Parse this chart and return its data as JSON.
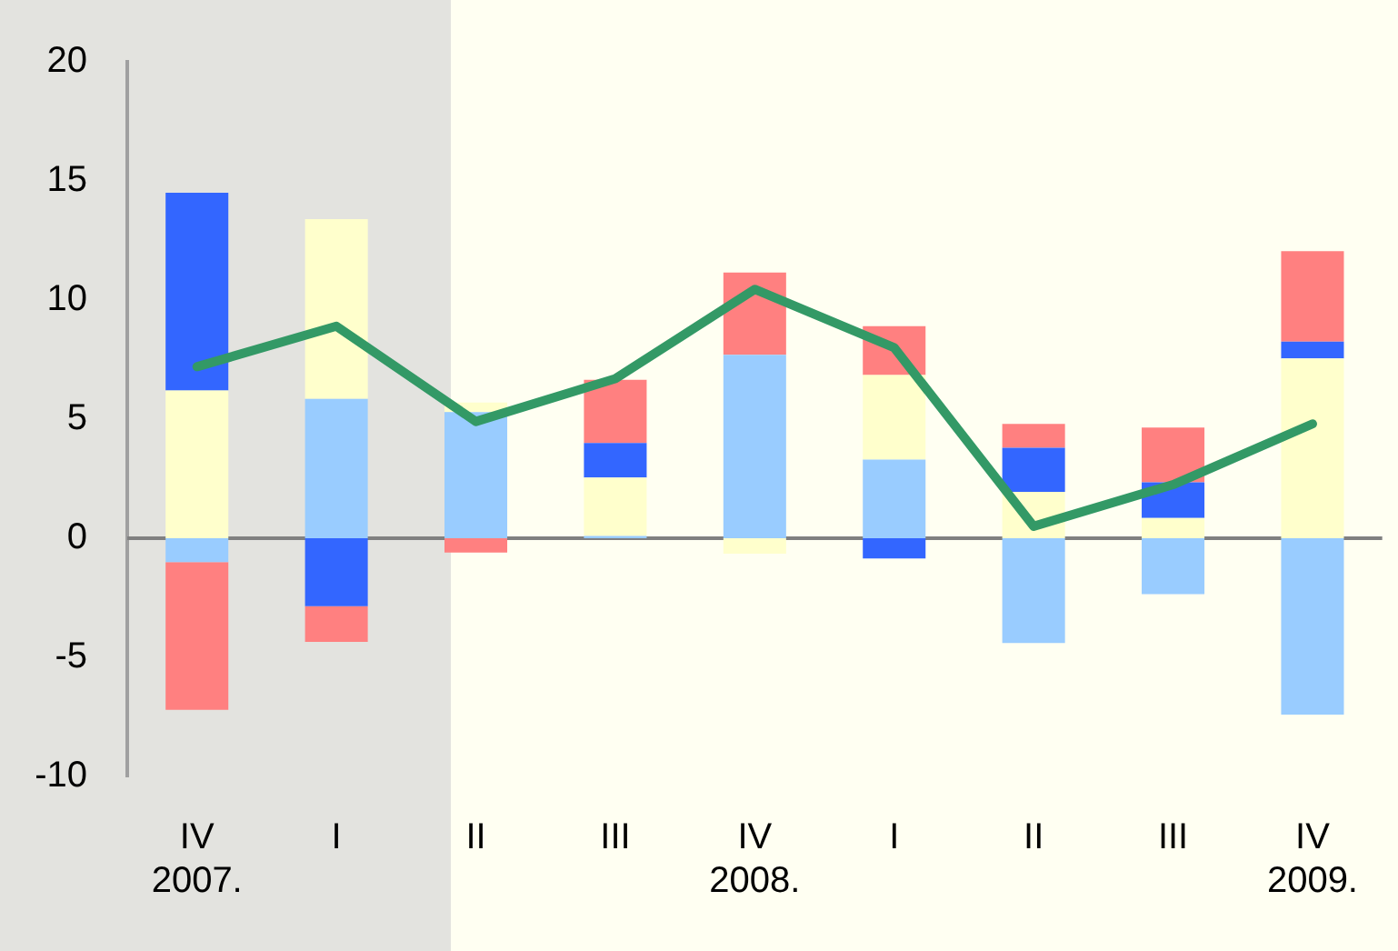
{
  "chart_data": {
    "type": "bar",
    "stacked": true,
    "categories": [
      "IV\n2007.",
      "I",
      "II",
      "III",
      "IV\n2008.",
      "I",
      "II",
      "III",
      "IV\n2009."
    ],
    "series": [
      {
        "color": "#99ccff",
        "values": [
          -1.0,
          5.85,
          5.3,
          0.1,
          7.7,
          3.3,
          -4.4,
          -2.35,
          -7.4
        ]
      },
      {
        "color": "#ffffcc",
        "values": [
          6.2,
          7.55,
          0.4,
          2.45,
          -0.65,
          3.55,
          1.95,
          0.85,
          7.55
        ]
      },
      {
        "color": "#3366ff",
        "values": [
          8.3,
          -2.85,
          0,
          1.45,
          0,
          -0.85,
          1.85,
          1.5,
          0.7
        ]
      },
      {
        "color": "#ff8080",
        "values": [
          -6.2,
          -1.5,
          -0.6,
          2.65,
          3.45,
          2.05,
          1.0,
          2.3,
          3.8
        ]
      },
      {
        "type": "line",
        "color": "#339966",
        "values": [
          7.2,
          8.9,
          4.9,
          6.7,
          10.45,
          8.0,
          0.5,
          2.25,
          4.8
        ]
      }
    ],
    "ylim": [
      -10,
      20
    ],
    "yticks": [
      -10,
      -5,
      0,
      5,
      10,
      15,
      20
    ],
    "ref_lines": [
      {
        "axis": "y",
        "value": 0,
        "color": "#808080"
      }
    ],
    "grid": false,
    "legend": false
  }
}
